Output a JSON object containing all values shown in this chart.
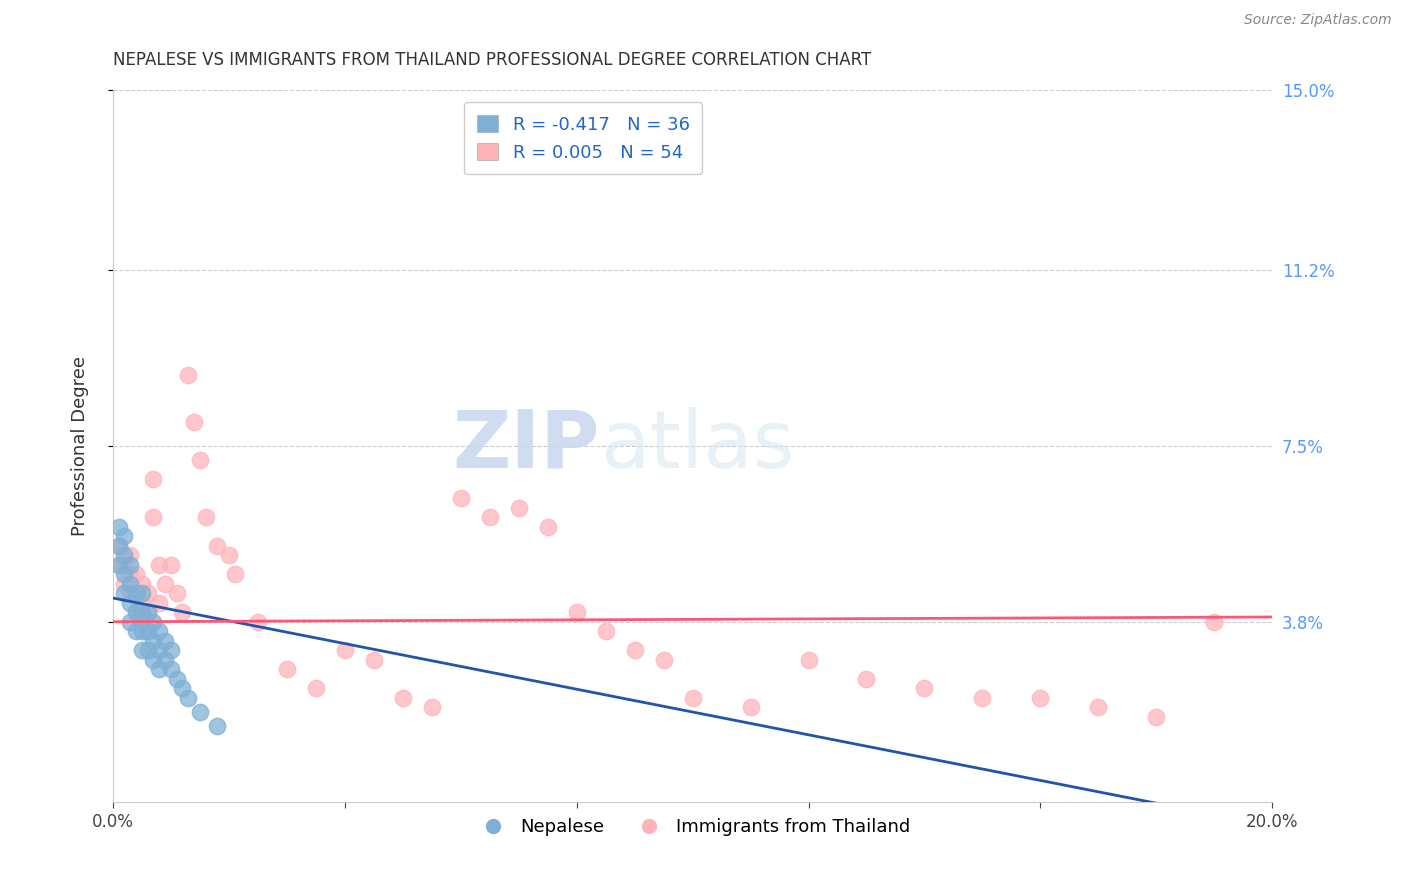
{
  "title": "NEPALESE VS IMMIGRANTS FROM THAILAND PROFESSIONAL DEGREE CORRELATION CHART",
  "source": "Source: ZipAtlas.com",
  "ylabel_label": "Professional Degree",
  "xlim": [
    0.0,
    0.2
  ],
  "ylim": [
    0.0,
    0.15
  ],
  "ytick_positions": [
    0.038,
    0.075,
    0.112,
    0.15
  ],
  "ytick_labels": [
    "3.8%",
    "7.5%",
    "11.2%",
    "15.0%"
  ],
  "blue_color": "#7EB0D5",
  "pink_color": "#FFB3BA",
  "blue_line_color": "#2255AA",
  "pink_line_color": "#FF5577",
  "watermark_zip": "ZIP",
  "watermark_atlas": "atlas",
  "background_color": "#FFFFFF",
  "grid_color": "#CCCCCC",
  "title_color": "#333333",
  "right_tick_color": "#5599FF",
  "blue_points_x": [
    0.001,
    0.001,
    0.001,
    0.002,
    0.002,
    0.002,
    0.002,
    0.003,
    0.003,
    0.003,
    0.003,
    0.004,
    0.004,
    0.004,
    0.005,
    0.005,
    0.005,
    0.005,
    0.006,
    0.006,
    0.006,
    0.007,
    0.007,
    0.007,
    0.008,
    0.008,
    0.008,
    0.009,
    0.009,
    0.01,
    0.01,
    0.011,
    0.012,
    0.013,
    0.015,
    0.018
  ],
  "blue_points_y": [
    0.058,
    0.054,
    0.05,
    0.056,
    0.052,
    0.048,
    0.044,
    0.05,
    0.046,
    0.042,
    0.038,
    0.044,
    0.04,
    0.036,
    0.044,
    0.04,
    0.036,
    0.032,
    0.04,
    0.036,
    0.032,
    0.038,
    0.034,
    0.03,
    0.036,
    0.032,
    0.028,
    0.034,
    0.03,
    0.032,
    0.028,
    0.026,
    0.024,
    0.022,
    0.019,
    0.016
  ],
  "pink_points_x": [
    0.001,
    0.001,
    0.002,
    0.002,
    0.003,
    0.003,
    0.003,
    0.004,
    0.004,
    0.005,
    0.005,
    0.005,
    0.006,
    0.006,
    0.007,
    0.007,
    0.008,
    0.008,
    0.009,
    0.01,
    0.011,
    0.012,
    0.013,
    0.014,
    0.015,
    0.016,
    0.018,
    0.02,
    0.021,
    0.025,
    0.03,
    0.035,
    0.04,
    0.045,
    0.05,
    0.055,
    0.06,
    0.065,
    0.07,
    0.075,
    0.08,
    0.085,
    0.09,
    0.095,
    0.1,
    0.11,
    0.12,
    0.13,
    0.14,
    0.15,
    0.16,
    0.17,
    0.18,
    0.19
  ],
  "pink_points_y": [
    0.054,
    0.05,
    0.05,
    0.046,
    0.052,
    0.048,
    0.044,
    0.048,
    0.04,
    0.046,
    0.042,
    0.038,
    0.044,
    0.04,
    0.068,
    0.06,
    0.05,
    0.042,
    0.046,
    0.05,
    0.044,
    0.04,
    0.09,
    0.08,
    0.072,
    0.06,
    0.054,
    0.052,
    0.048,
    0.038,
    0.028,
    0.024,
    0.032,
    0.03,
    0.022,
    0.02,
    0.064,
    0.06,
    0.062,
    0.058,
    0.04,
    0.036,
    0.032,
    0.03,
    0.022,
    0.02,
    0.03,
    0.026,
    0.024,
    0.022,
    0.022,
    0.02,
    0.018,
    0.038
  ]
}
